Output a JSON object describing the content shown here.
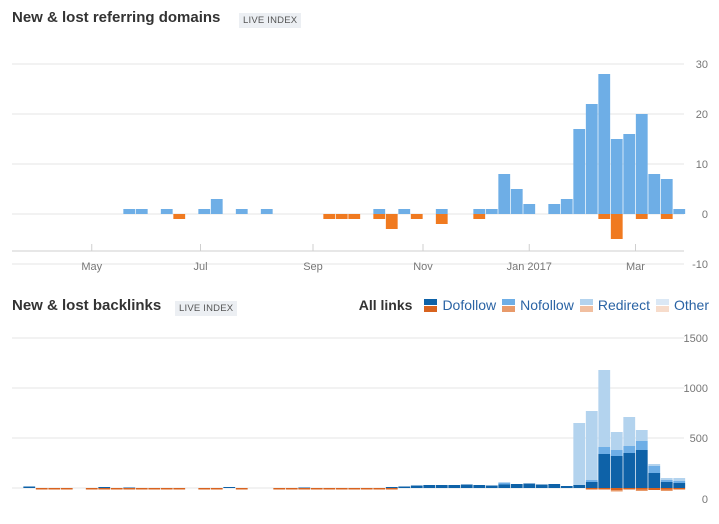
{
  "top": {
    "title": "New & lost referring domains",
    "badge": "LIVE INDEX"
  },
  "bottom": {
    "title": "New & lost backlinks",
    "badge": "LIVE INDEX",
    "legend_all": "All links",
    "legend": [
      {
        "label": "Dofollow",
        "new_color": "#0e62a8",
        "lost_color": "#d8631f"
      },
      {
        "label": "Nofollow",
        "new_color": "#6eaee6",
        "lost_color": "#e89a6a"
      },
      {
        "label": "Redirect",
        "new_color": "#b3d3ee",
        "lost_color": "#f1bfa0"
      },
      {
        "label": "Other",
        "new_color": "#dbe8f5",
        "lost_color": "#f7dccb"
      }
    ]
  },
  "chart_data": [
    {
      "type": "bar",
      "title": "New & lost referring domains",
      "x_tick_labels": [
        "May",
        "Jul",
        "Sep",
        "Nov",
        "Jan 2017",
        "Mar"
      ],
      "y_ticks": [
        30,
        20,
        10,
        0,
        -10
      ],
      "ylim": [
        -10,
        30
      ],
      "grid": true,
      "series": [
        {
          "color": "#6eaee6",
          "values": [
            0,
            0,
            0,
            0,
            0,
            0,
            0,
            0,
            1,
            1,
            0,
            1,
            0,
            0,
            1,
            3,
            0,
            1,
            0,
            1,
            0,
            0,
            0,
            0,
            0,
            0,
            0,
            0,
            1,
            0,
            1,
            0,
            0,
            1,
            0,
            0,
            1,
            1,
            8,
            5,
            2,
            0,
            2,
            3,
            17,
            22,
            28,
            15,
            16,
            20,
            8,
            7,
            1
          ]
        },
        {
          "color": "#f07a20",
          "values": [
            0,
            0,
            0,
            0,
            0,
            0,
            0,
            0,
            0,
            0,
            0,
            0,
            -1,
            0,
            0,
            0,
            0,
            0,
            0,
            0,
            0,
            0,
            0,
            0,
            -1,
            -1,
            -1,
            0,
            -1,
            -3,
            0,
            -1,
            0,
            -2,
            0,
            0,
            -1,
            0,
            0,
            0,
            0,
            0,
            0,
            0,
            0,
            0,
            -1,
            -5,
            0,
            -1,
            0,
            -1,
            0
          ]
        }
      ]
    },
    {
      "type": "bar",
      "title": "New & lost backlinks",
      "y_ticks": [
        1500,
        1000,
        500,
        0
      ],
      "ylim": [
        -40,
        1500
      ],
      "grid": true,
      "series": [
        {
          "name": "Dofollow",
          "values": [
            15,
            0,
            0,
            0,
            0,
            0,
            10,
            0,
            5,
            0,
            0,
            0,
            0,
            0,
            0,
            0,
            10,
            0,
            0,
            0,
            0,
            0,
            5,
            0,
            0,
            0,
            0,
            0,
            0,
            10,
            15,
            25,
            30,
            30,
            30,
            35,
            30,
            25,
            35,
            40,
            45,
            35,
            40,
            20,
            30,
            60,
            340,
            320,
            350,
            380,
            150,
            60,
            50
          ]
        },
        {
          "name": "Nofollow",
          "values": [
            0,
            0,
            0,
            0,
            0,
            0,
            0,
            0,
            0,
            0,
            0,
            0,
            0,
            0,
            0,
            0,
            0,
            0,
            0,
            0,
            0,
            0,
            0,
            0,
            0,
            0,
            0,
            0,
            0,
            0,
            0,
            0,
            0,
            0,
            0,
            0,
            0,
            0,
            20,
            0,
            0,
            0,
            0,
            0,
            0,
            20,
            70,
            60,
            70,
            90,
            70,
            20,
            20
          ]
        },
        {
          "name": "Redirect",
          "values": [
            0,
            0,
            0,
            0,
            0,
            0,
            0,
            0,
            0,
            0,
            0,
            0,
            0,
            0,
            0,
            0,
            0,
            0,
            0,
            0,
            0,
            0,
            0,
            0,
            0,
            0,
            0,
            0,
            0,
            0,
            0,
            0,
            0,
            0,
            0,
            0,
            0,
            0,
            0,
            0,
            0,
            0,
            0,
            0,
            620,
            690,
            770,
            180,
            290,
            110,
            20,
            20,
            30
          ]
        },
        {
          "name": "Dofollow lost",
          "values": [
            0,
            -10,
            -15,
            -10,
            0,
            -10,
            -10,
            -10,
            -10,
            -10,
            -10,
            -5,
            -10,
            0,
            -5,
            -5,
            0,
            -5,
            0,
            0,
            -5,
            -5,
            -5,
            -10,
            -10,
            -10,
            -10,
            -5,
            -5,
            -5,
            0,
            0,
            0,
            0,
            0,
            0,
            0,
            0,
            0,
            0,
            0,
            0,
            0,
            0,
            0,
            -5,
            -5,
            -20,
            -10,
            -15,
            -20,
            -15,
            -15
          ]
        },
        {
          "name": "Nofollow lost",
          "values": [
            0,
            0,
            0,
            0,
            0,
            0,
            0,
            0,
            0,
            0,
            0,
            0,
            0,
            0,
            0,
            0,
            0,
            0,
            0,
            0,
            0,
            0,
            0,
            0,
            0,
            0,
            0,
            0,
            0,
            0,
            0,
            0,
            0,
            0,
            0,
            0,
            0,
            0,
            0,
            0,
            0,
            0,
            0,
            0,
            0,
            0,
            0,
            -10,
            0,
            -5,
            0,
            -5,
            0
          ]
        }
      ]
    }
  ]
}
